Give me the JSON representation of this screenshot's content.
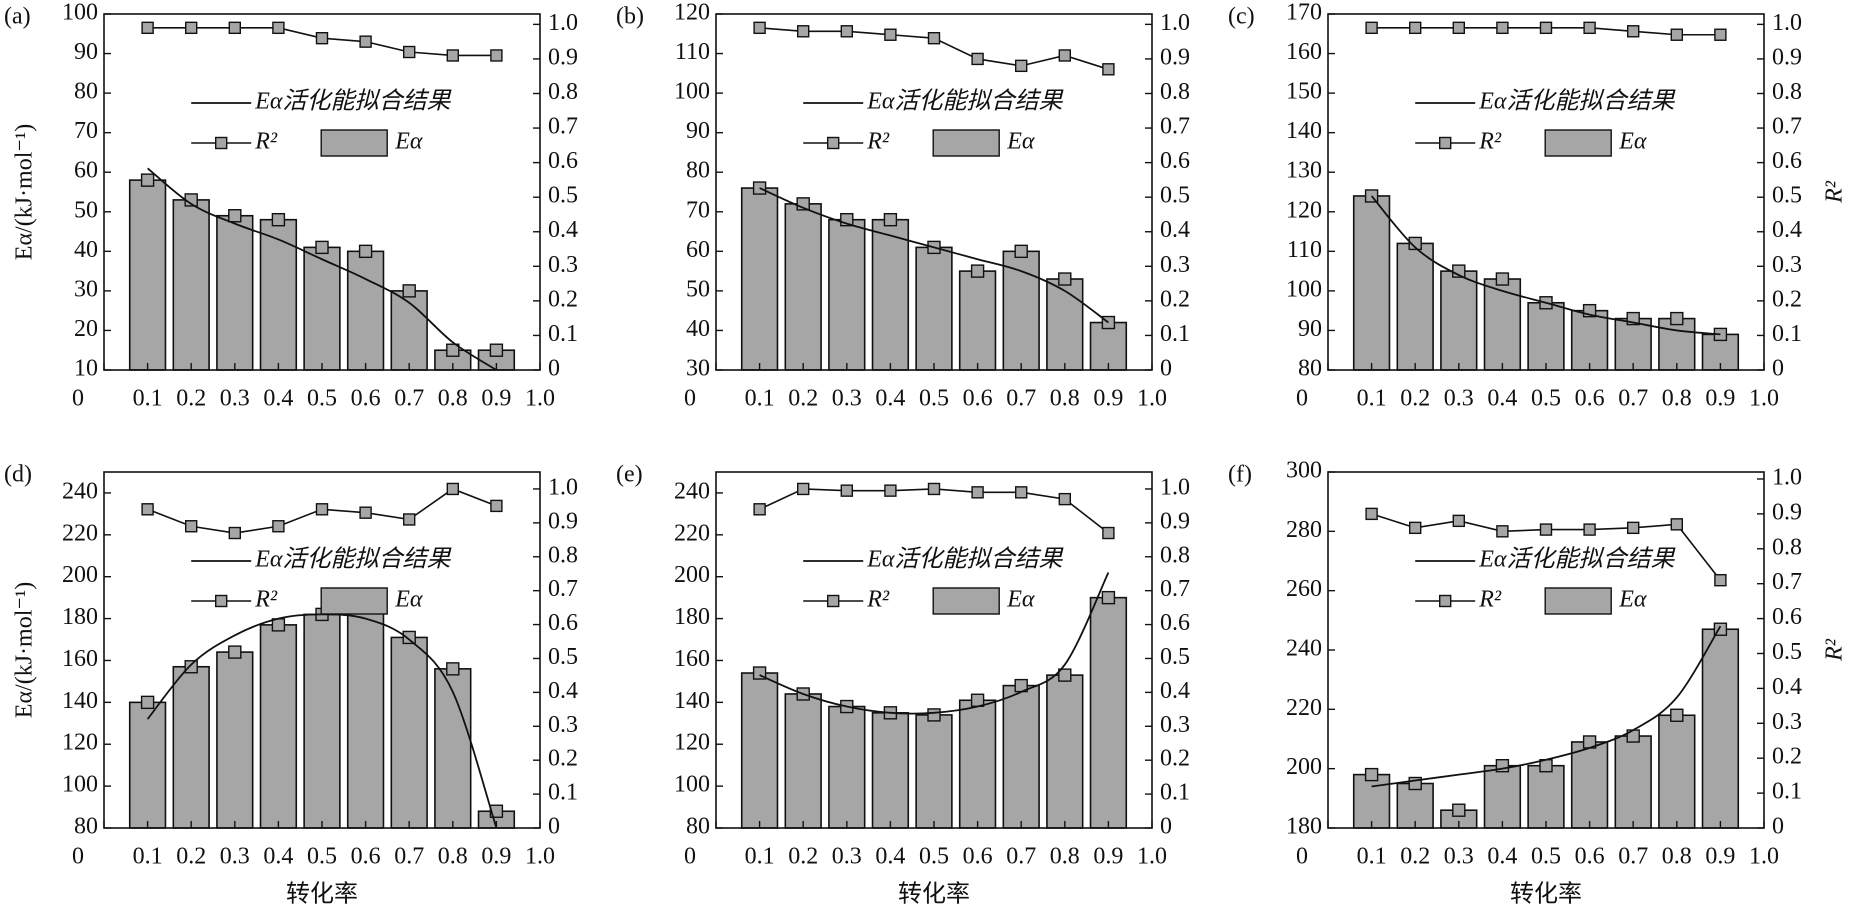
{
  "chart_data": [
    {
      "type": "bar",
      "title": "(a)",
      "ylabel": "Eα/(kJ·mol⁻¹)",
      "x": [
        0.1,
        0.2,
        0.3,
        0.4,
        0.5,
        0.6,
        0.7,
        0.8,
        0.9
      ],
      "series": [
        {
          "name": "Eα活化能拟合结果",
          "type": "line",
          "color": "#111111",
          "values": [
            61,
            52,
            47,
            43,
            38,
            33,
            27,
            17,
            10
          ]
        },
        {
          "name": "R²",
          "type": "line",
          "axis": "y2",
          "color": "#111111",
          "values": [
            0.99,
            0.99,
            0.99,
            0.99,
            0.96,
            0.95,
            0.92,
            0.91,
            0.91
          ]
        },
        {
          "name": "Eα",
          "type": "bar",
          "color": "#a6a6a6",
          "values": [
            58,
            53,
            49,
            48,
            41,
            40,
            30,
            15,
            15
          ]
        }
      ],
      "xlim": [
        0,
        1
      ],
      "xticks": [
        0,
        0.1,
        0.2,
        0.3,
        0.4,
        0.5,
        0.6,
        0.7,
        0.8,
        0.9,
        {
          "value": 1,
          "label": "1.0"
        }
      ],
      "ylim": [
        10,
        100
      ],
      "yticks": [
        10,
        20,
        30,
        40,
        50,
        60,
        70,
        80,
        90,
        100
      ],
      "y2lim": [
        0,
        1.03
      ],
      "y2ticks": [
        0,
        0.1,
        0.2,
        0.3,
        0.4,
        0.5,
        0.6,
        0.7,
        0.8,
        0.9,
        {
          "value": 1,
          "label": "1.0"
        }
      ],
      "legend": "upper right"
    },
    {
      "type": "bar",
      "title": "(b)",
      "x": [
        0.1,
        0.2,
        0.3,
        0.4,
        0.5,
        0.6,
        0.7,
        0.8,
        0.9
      ],
      "series": [
        {
          "name": "Eα活化能拟合结果",
          "type": "line",
          "color": "#111111",
          "values": [
            76,
            71,
            67,
            64,
            61,
            58,
            55,
            50,
            42
          ]
        },
        {
          "name": "R²",
          "type": "line",
          "axis": "y2",
          "color": "#111111",
          "values": [
            0.99,
            0.98,
            0.98,
            0.97,
            0.96,
            0.9,
            0.88,
            0.91,
            0.87
          ]
        },
        {
          "name": "Eα",
          "type": "bar",
          "color": "#a6a6a6",
          "values": [
            76,
            72,
            68,
            68,
            61,
            55,
            60,
            53,
            42
          ]
        }
      ],
      "xlim": [
        0,
        1
      ],
      "xticks": [
        0,
        0.1,
        0.2,
        0.3,
        0.4,
        0.5,
        0.6,
        0.7,
        0.8,
        0.9,
        {
          "value": 1,
          "label": "1.0"
        }
      ],
      "ylim": [
        30,
        120
      ],
      "yticks": [
        30,
        40,
        50,
        60,
        70,
        80,
        90,
        100,
        110,
        120
      ],
      "y2lim": [
        0,
        1.03
      ],
      "y2ticks": [
        0,
        0.1,
        0.2,
        0.3,
        0.4,
        0.5,
        0.6,
        0.7,
        0.8,
        0.9,
        {
          "value": 1,
          "label": "1.0"
        }
      ],
      "legend": "upper right"
    },
    {
      "type": "bar",
      "title": "(c)",
      "y2label": "R²",
      "x": [
        0.1,
        0.2,
        0.3,
        0.4,
        0.5,
        0.6,
        0.7,
        0.8,
        0.9
      ],
      "series": [
        {
          "name": "Eα活化能拟合结果",
          "type": "line",
          "color": "#111111",
          "values": [
            124,
            111,
            104,
            100,
            97,
            94,
            92,
            90,
            89
          ]
        },
        {
          "name": "R²",
          "type": "line",
          "axis": "y2",
          "color": "#111111",
          "values": [
            0.99,
            0.99,
            0.99,
            0.99,
            0.99,
            0.99,
            0.98,
            0.97,
            0.97
          ]
        },
        {
          "name": "Eα",
          "type": "bar",
          "color": "#a6a6a6",
          "values": [
            124,
            112,
            105,
            103,
            97,
            95,
            93,
            93,
            89
          ]
        }
      ],
      "xlim": [
        0,
        1
      ],
      "xticks": [
        0,
        0.1,
        0.2,
        0.3,
        0.4,
        0.5,
        0.6,
        0.7,
        0.8,
        0.9,
        {
          "value": 1,
          "label": "1.0"
        }
      ],
      "ylim": [
        80,
        170
      ],
      "yticks": [
        80,
        90,
        100,
        110,
        120,
        130,
        140,
        150,
        160,
        170
      ],
      "y2lim": [
        0,
        1.03
      ],
      "y2ticks": [
        0,
        0.1,
        0.2,
        0.3,
        0.4,
        0.5,
        0.6,
        0.7,
        0.8,
        0.9,
        {
          "value": 1,
          "label": "1.0"
        }
      ],
      "legend": "upper right"
    },
    {
      "type": "bar",
      "title": "(d)",
      "ylabel": "Eα/(kJ·mol⁻¹)",
      "xlabel": "转化率",
      "x": [
        0.1,
        0.2,
        0.3,
        0.4,
        0.5,
        0.6,
        0.7,
        0.8,
        0.9
      ],
      "series": [
        {
          "name": "Eα活化能拟合结果",
          "type": "line",
          "color": "#111111",
          "values": [
            132,
            158,
            172,
            180,
            182,
            180,
            170,
            145,
            80
          ]
        },
        {
          "name": "R²",
          "type": "line",
          "axis": "y2",
          "color": "#111111",
          "values": [
            0.94,
            0.89,
            0.87,
            0.89,
            0.94,
            0.93,
            0.91,
            1.0,
            0.95
          ]
        },
        {
          "name": "Eα",
          "type": "bar",
          "color": "#a6a6a6",
          "values": [
            140,
            157,
            164,
            177,
            182,
            188,
            171,
            156,
            88
          ]
        }
      ],
      "xlim": [
        0,
        1
      ],
      "xticks": [
        0,
        0.1,
        0.2,
        0.3,
        0.4,
        0.5,
        0.6,
        0.7,
        0.8,
        0.9,
        {
          "value": 1,
          "label": "1.0"
        }
      ],
      "ylim": [
        80,
        250
      ],
      "yticks": [
        80,
        100,
        120,
        140,
        160,
        180,
        200,
        220,
        240
      ],
      "y2lim": [
        0,
        1.05
      ],
      "y2ticks": [
        0,
        0.1,
        0.2,
        0.3,
        0.4,
        0.5,
        0.6,
        0.7,
        0.8,
        0.9,
        {
          "value": 1,
          "label": "1.0"
        }
      ],
      "legend": "upper right"
    },
    {
      "type": "bar",
      "title": "(e)",
      "xlabel": "转化率",
      "x": [
        0.1,
        0.2,
        0.3,
        0.4,
        0.5,
        0.6,
        0.7,
        0.8,
        0.9
      ],
      "series": [
        {
          "name": "Eα活化能拟合结果",
          "type": "line",
          "color": "#111111",
          "values": [
            153,
            144,
            138,
            135,
            135,
            138,
            145,
            158,
            202
          ]
        },
        {
          "name": "R²",
          "type": "line",
          "axis": "y2",
          "color": "#111111",
          "values": [
            0.94,
            1.0,
            0.995,
            0.995,
            1.0,
            0.99,
            0.99,
            0.97,
            0.87
          ]
        },
        {
          "name": "Eα",
          "type": "bar",
          "color": "#a6a6a6",
          "values": [
            154,
            144,
            138,
            135,
            134,
            141,
            148,
            153,
            190
          ]
        }
      ],
      "xlim": [
        0,
        1
      ],
      "xticks": [
        0,
        0.1,
        0.2,
        0.3,
        0.4,
        0.5,
        0.6,
        0.7,
        0.8,
        0.9,
        {
          "value": 1,
          "label": "1.0"
        }
      ],
      "ylim": [
        80,
        250
      ],
      "yticks": [
        80,
        100,
        120,
        140,
        160,
        180,
        200,
        220,
        240
      ],
      "y2lim": [
        0,
        1.05
      ],
      "y2ticks": [
        0,
        0.1,
        0.2,
        0.3,
        0.4,
        0.5,
        0.6,
        0.7,
        0.8,
        0.9,
        {
          "value": 1,
          "label": "1.0"
        }
      ],
      "legend": "upper right"
    },
    {
      "type": "bar",
      "title": "(f)",
      "xlabel": "转化率",
      "y2label": "R²",
      "x": [
        0.1,
        0.2,
        0.3,
        0.4,
        0.5,
        0.6,
        0.7,
        0.8,
        0.9
      ],
      "series": [
        {
          "name": "Eα活化能拟合结果",
          "type": "line",
          "color": "#111111",
          "values": [
            194,
            196,
            198,
            200,
            203,
            207,
            213,
            224,
            248
          ]
        },
        {
          "name": "R²",
          "type": "line",
          "axis": "y2",
          "color": "#111111",
          "values": [
            0.9,
            0.86,
            0.88,
            0.85,
            0.855,
            0.855,
            0.86,
            0.87,
            0.71
          ]
        },
        {
          "name": "Eα",
          "type": "bar",
          "color": "#a6a6a6",
          "values": [
            198,
            195,
            186,
            201,
            201,
            209,
            211,
            218,
            247
          ]
        }
      ],
      "xlim": [
        0,
        1
      ],
      "xticks": [
        0,
        0.1,
        0.2,
        0.3,
        0.4,
        0.5,
        0.6,
        0.7,
        0.8,
        0.9,
        {
          "value": 1,
          "label": "1.0"
        }
      ],
      "ylim": [
        180,
        300
      ],
      "yticks": [
        180,
        200,
        220,
        240,
        260,
        280,
        300
      ],
      "y2lim": [
        0,
        1.02
      ],
      "y2ticks": [
        0,
        0.1,
        0.2,
        0.3,
        0.4,
        0.5,
        0.6,
        0.7,
        0.8,
        0.9,
        {
          "value": 1,
          "label": "1.0"
        }
      ],
      "legend": "upper right"
    }
  ]
}
